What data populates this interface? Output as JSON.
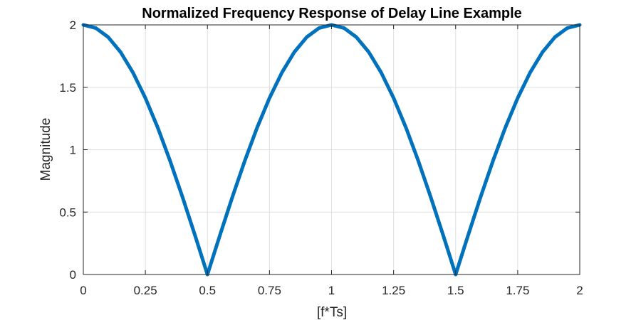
{
  "chart_data": {
    "type": "line",
    "title": "Normalized Frequency Response of Delay Line Example",
    "xlabel": "[f*Ts]",
    "ylabel": "Magnitude",
    "xlim": [
      0,
      2
    ],
    "ylim": [
      0,
      2
    ],
    "grid": true,
    "x_ticks": [
      0,
      0.25,
      0.5,
      0.75,
      1,
      1.25,
      1.5,
      1.75,
      2
    ],
    "x_tick_labels": [
      "0",
      "0.25",
      "0.5",
      "0.75",
      "1",
      "1.25",
      "1.5",
      "1.75",
      "2"
    ],
    "y_ticks": [
      0,
      0.5,
      1,
      1.5,
      2
    ],
    "y_tick_labels": [
      "0",
      "0.5",
      "1",
      "1.5",
      "2"
    ],
    "line_color": "#0072BD",
    "series": [
      {
        "x": [
          0,
          0.05,
          0.1,
          0.15,
          0.2,
          0.25,
          0.3,
          0.35,
          0.4,
          0.45,
          0.5,
          0.55,
          0.6,
          0.65,
          0.7,
          0.75,
          0.8,
          0.85,
          0.9,
          0.95,
          1,
          1.05,
          1.1,
          1.15,
          1.2,
          1.25,
          1.3,
          1.35,
          1.4,
          1.45,
          1.5,
          1.55,
          1.6,
          1.65,
          1.7,
          1.75,
          1.8,
          1.85,
          1.9,
          1.95,
          2
        ],
        "values": [
          2,
          1.975,
          1.902,
          1.782,
          1.618,
          1.414,
          1.176,
          0.908,
          0.618,
          0.313,
          0,
          0.313,
          0.618,
          0.908,
          1.176,
          1.414,
          1.618,
          1.782,
          1.902,
          1.975,
          2,
          1.975,
          1.902,
          1.782,
          1.618,
          1.414,
          1.176,
          0.908,
          0.618,
          0.313,
          0,
          0.313,
          0.618,
          0.908,
          1.176,
          1.414,
          1.618,
          1.782,
          1.902,
          1.975,
          2
        ]
      }
    ]
  }
}
